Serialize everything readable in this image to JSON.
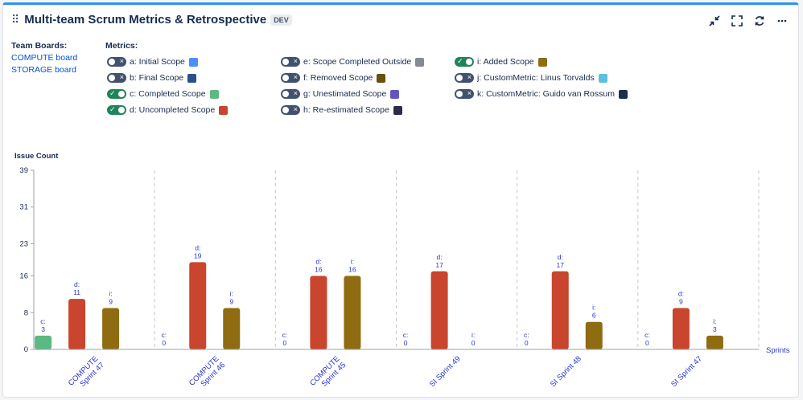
{
  "header": {
    "drag_icon": "⠿",
    "title": "Multi-team Scrum Metrics & Retrospective",
    "badge": "DEV"
  },
  "toolbar": {
    "icons": [
      "collapse-icon",
      "fullscreen-icon",
      "refresh-icon",
      "more-icon"
    ]
  },
  "boards": {
    "label": "Team Boards:",
    "items": [
      "COMPUTE board",
      "STORAGE board"
    ]
  },
  "metrics": {
    "label": "Metrics:",
    "columns": [
      [
        {
          "label": "a: Initial Scope",
          "on": false,
          "color": "#4c8ef7"
        },
        {
          "label": "b: Final Scope",
          "on": false,
          "color": "#2c4e8f"
        },
        {
          "label": "c: Completed Scope",
          "on": true,
          "color": "#5bb982"
        },
        {
          "label": "d: Uncompleted Scope",
          "on": true,
          "color": "#c9452e"
        }
      ],
      [
        {
          "label": "e: Scope Completed Outside",
          "on": false,
          "color": "#868b93"
        },
        {
          "label": "f: Removed Scope",
          "on": false,
          "color": "#6b4f0e"
        },
        {
          "label": "g: Unestimated Scope",
          "on": false,
          "color": "#6554c0"
        },
        {
          "label": "h: Re-estimated Scope",
          "on": false,
          "color": "#2b2b4a"
        }
      ],
      [
        {
          "label": "i: Added Scope",
          "on": true,
          "color": "#8f6c12"
        },
        {
          "label": "j: CustomMetric: Linus Torvalds",
          "on": false,
          "color": "#5bc0de"
        },
        {
          "label": "k: CustomMetric: Guido van Rossum",
          "on": false,
          "color": "#1e2e50"
        }
      ]
    ]
  },
  "chart_data": {
    "type": "bar",
    "ylabel": "Issue Count",
    "xlabel": "Sprints",
    "yticks": [
      0,
      8,
      16,
      23,
      31,
      39
    ],
    "ylim": [
      0,
      39
    ],
    "categories": [
      [
        "COMPUTE",
        "Sprint 47"
      ],
      [
        "COMPUTE",
        "Sprint 46"
      ],
      [
        "COMPUTE",
        "Sprint 45"
      ],
      [
        "SI Sprint 49"
      ],
      [
        "SI Sprint 48"
      ],
      [
        "SI Sprint 47"
      ]
    ],
    "series": [
      {
        "name": "c",
        "color": "#5bb982",
        "values": [
          3,
          0,
          0,
          0,
          0,
          0
        ]
      },
      {
        "name": "d",
        "color": "#c9452e",
        "values": [
          11,
          19,
          16,
          17,
          17,
          9
        ]
      },
      {
        "name": "i",
        "color": "#8f6c12",
        "values": [
          9,
          9,
          16,
          0,
          6,
          3
        ]
      }
    ],
    "grid": "vertical-dashed",
    "label_color": "#2b36c9"
  }
}
